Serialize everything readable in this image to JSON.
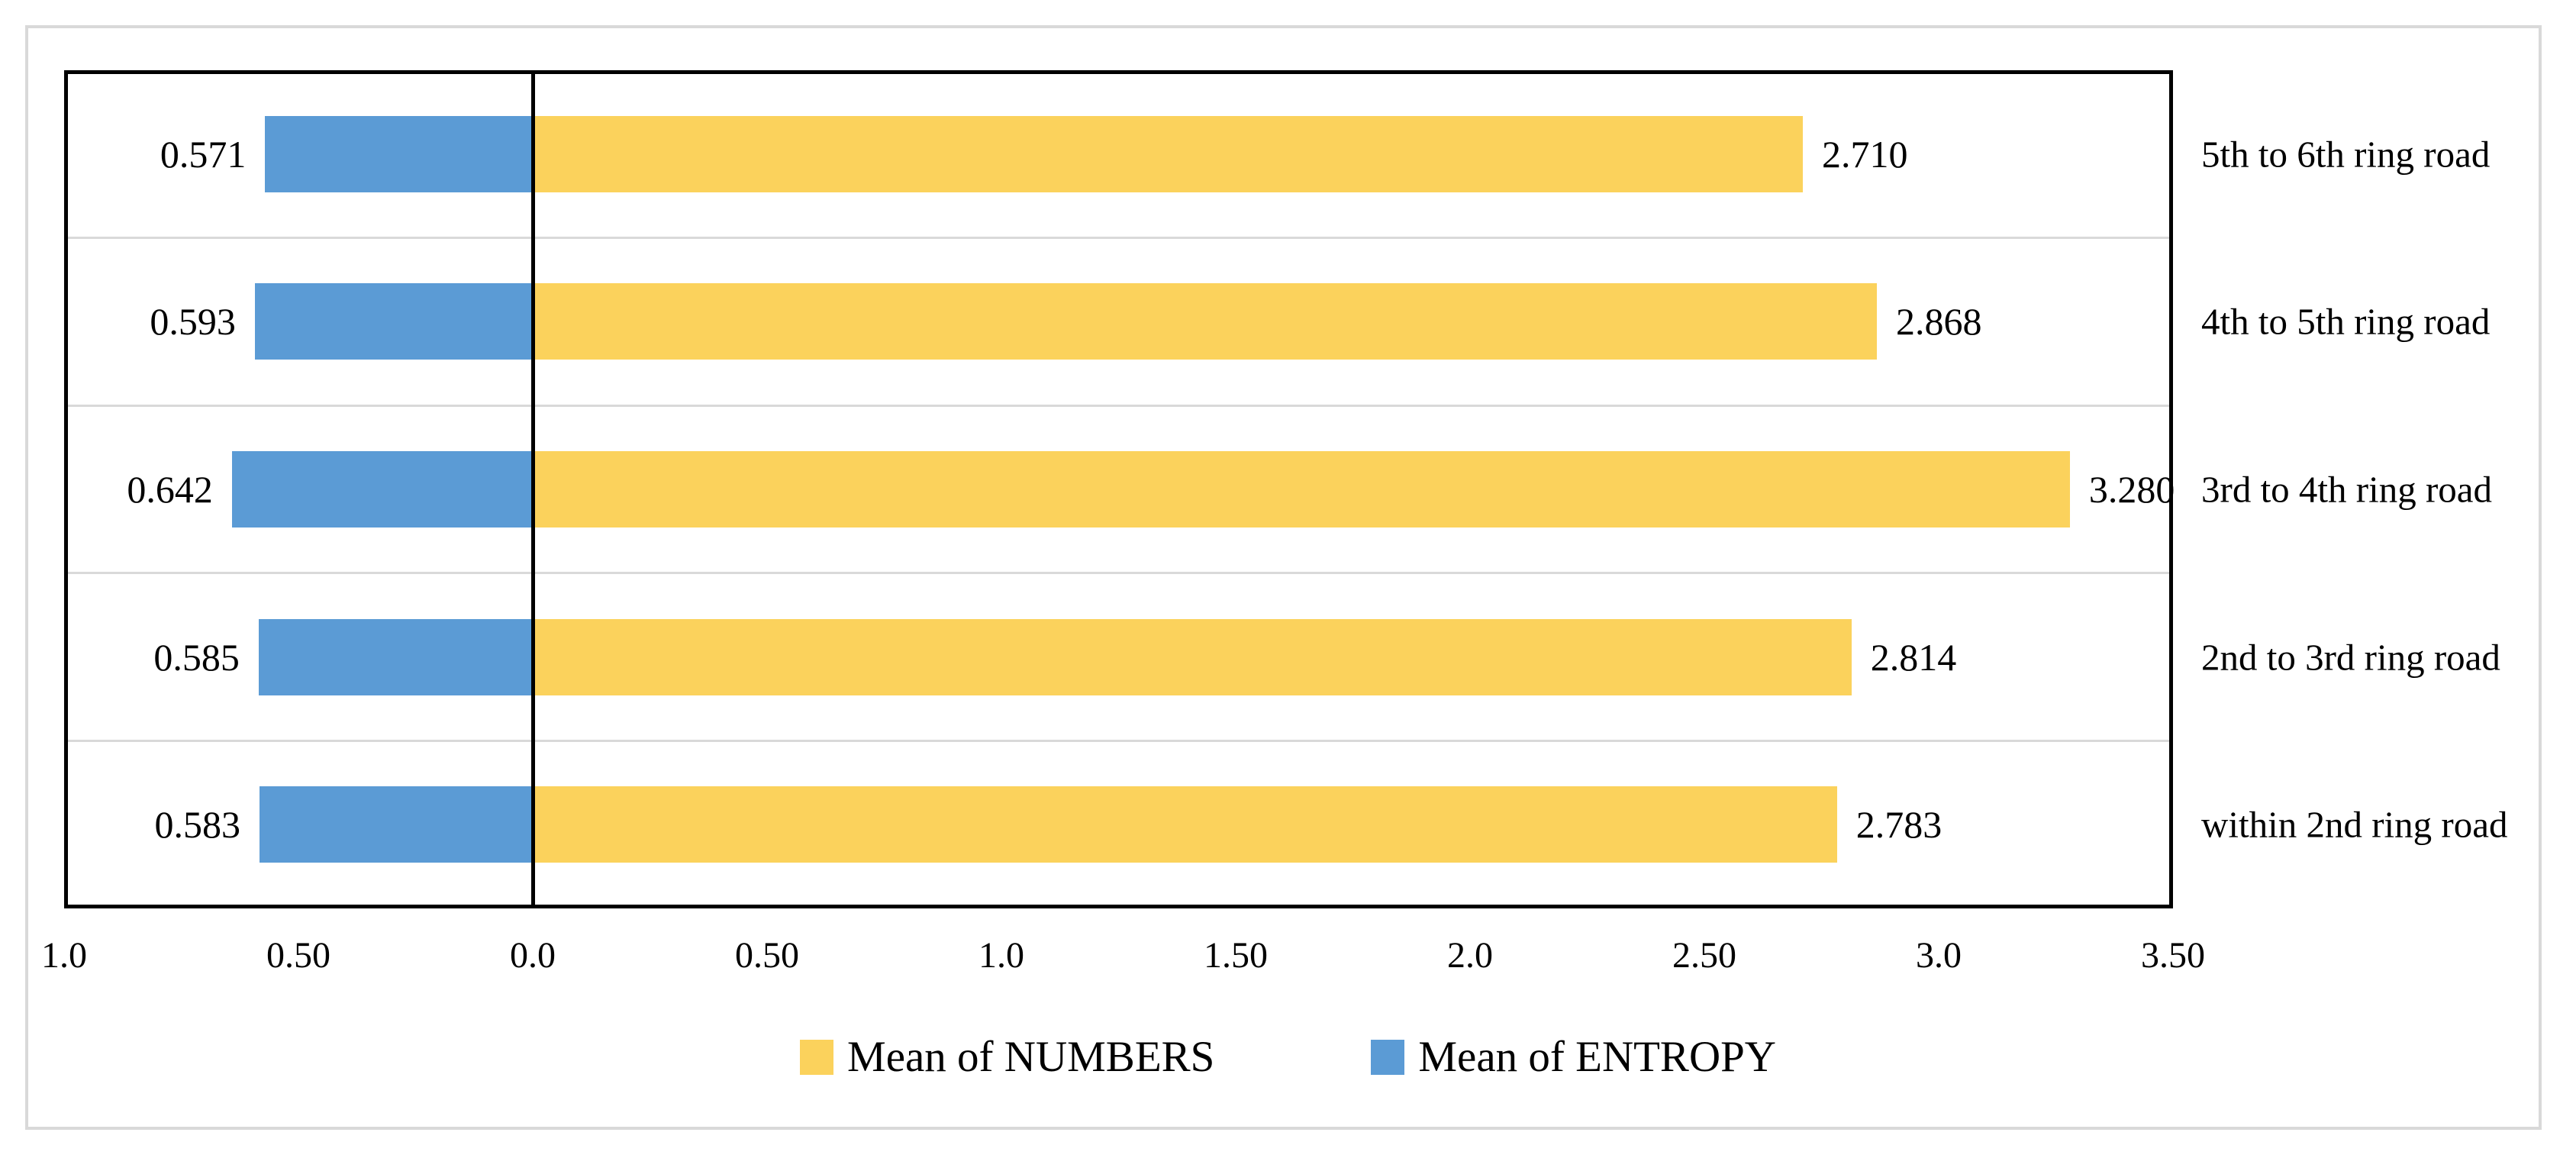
{
  "chart_data": {
    "type": "bar",
    "subtype": "diverging-horizontal",
    "categories": [
      "5th to 6th ring road",
      "4th to 5th ring road",
      "3rd to 4th ring road",
      "2nd to 3rd ring road",
      "within 2nd ring road"
    ],
    "series": [
      {
        "name": "Mean of NUMBERS",
        "color": "#FBD25C",
        "direction": "right",
        "values": [
          2.71,
          2.868,
          3.28,
          2.814,
          2.783
        ],
        "value_labels": [
          "2.710",
          "2.868",
          "3.280",
          "2.814",
          "2.783"
        ]
      },
      {
        "name": "Mean of ENTROPY",
        "color": "#5B9BD5",
        "direction": "left",
        "values": [
          0.571,
          0.593,
          0.642,
          0.585,
          0.583
        ],
        "value_labels": [
          "0.571",
          "0.593",
          "0.642",
          "0.585",
          "0.583"
        ]
      }
    ],
    "x_axis": {
      "range": [
        -1.0,
        3.5
      ],
      "ticks": [
        {
          "label": "1.0",
          "position": -1.0
        },
        {
          "label": "0.50",
          "position": -0.5
        },
        {
          "label": "0.0",
          "position": 0.0
        },
        {
          "label": "0.50",
          "position": 0.5
        },
        {
          "label": "1.0",
          "position": 1.0
        },
        {
          "label": "1.50",
          "position": 1.5
        },
        {
          "label": "2.0",
          "position": 2.0
        },
        {
          "label": "2.50",
          "position": 2.5
        },
        {
          "label": "3.0",
          "position": 3.0
        },
        {
          "label": "3.50",
          "position": 3.5
        }
      ]
    },
    "legend": {
      "position": "bottom-center",
      "items": [
        "Mean of NUMBERS",
        "Mean of ENTROPY"
      ]
    },
    "grid": {
      "horizontal_row_separators": true,
      "color": "#D9D9D9"
    }
  },
  "colors": {
    "bar_numbers": "#FBD25C",
    "bar_entropy": "#5B9BD5",
    "gridline": "#D9D9D9",
    "frame_border": "#D9D9D9",
    "plot_border": "#000000",
    "zero_axis": "#000000",
    "text": "#000000",
    "background": "#FFFFFF"
  }
}
